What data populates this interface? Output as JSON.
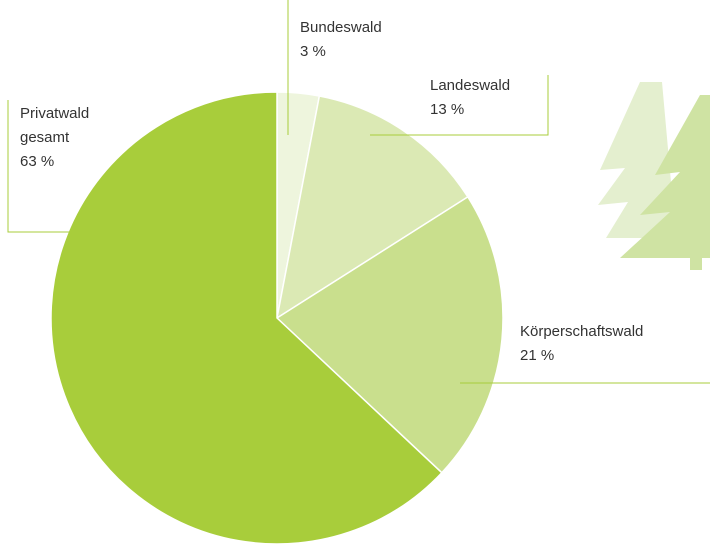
{
  "chart_data": {
    "type": "pie",
    "categories": [
      "Bundeswald",
      "Landeswald",
      "Körperschaftswald",
      "Privatwald gesamt"
    ],
    "values": [
      3,
      13,
      21,
      63
    ],
    "value_labels": [
      "3 %",
      "13 %",
      "21 %",
      "63 %"
    ],
    "colors": [
      "#eef5dd",
      "#dbe9b4",
      "#c9df8d",
      "#a8cd3b"
    ]
  }
}
